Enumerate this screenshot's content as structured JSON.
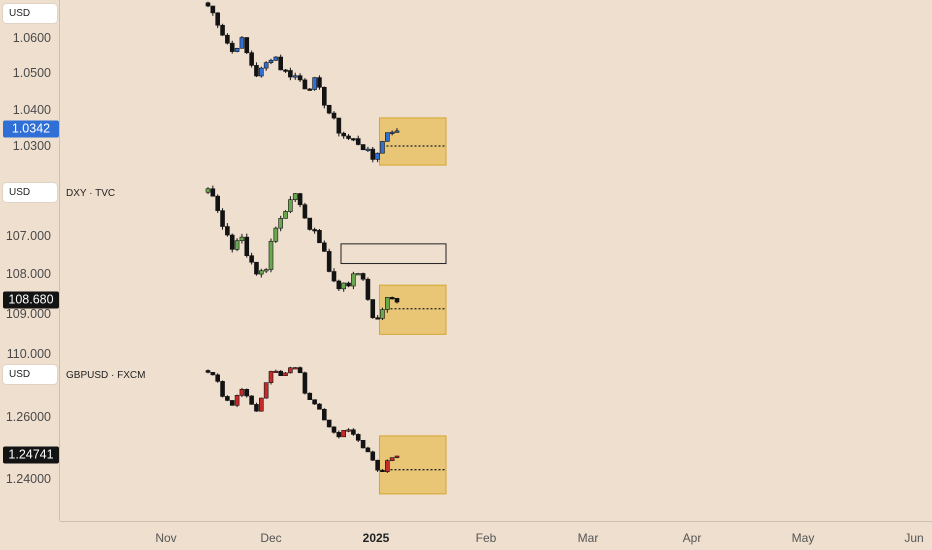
{
  "chart_data": [
    {
      "type": "candlestick",
      "title": "",
      "currency_label": "USD",
      "color_up": "#2f6fd6",
      "color_down": "#131313",
      "y_ticks": [
        "1.0600",
        "1.0500",
        "1.0400",
        "1.0300"
      ],
      "y_tick_values": [
        1.06,
        1.05,
        1.04,
        1.03
      ],
      "current_price": "1.0342",
      "current_price_value": 1.0342,
      "x_range": [
        "2024-11-13",
        "2025-01-06"
      ],
      "close_path": [
        1.0689,
        1.0654,
        1.0602,
        1.056,
        1.06,
        1.054,
        1.0495,
        1.0525,
        1.056,
        1.051,
        1.05,
        1.049,
        1.046,
        1.048,
        1.043,
        1.038,
        1.034,
        1.032,
        1.0315,
        1.0295,
        1.0262,
        1.03,
        1.035,
        1.0342
      ],
      "zones": [
        {
          "type": "demand",
          "from": "2025-01-01",
          "to": "2025-01-20",
          "y_top": 1.0378,
          "y_bottom": 1.0247,
          "color": "#e7c266"
        }
      ],
      "level": {
        "value": 1.03,
        "from": "2025-01-03",
        "to": "2025-01-20",
        "style": "dotted"
      }
    },
    {
      "type": "candlestick",
      "title": "DXY · TVC",
      "currency_label": "USD",
      "axis_inverted": true,
      "color_up": "#6aa84f",
      "color_down": "#131313",
      "y_ticks": [
        "107.000",
        "108.000",
        "109.000",
        "110.000"
      ],
      "y_tick_values": [
        107.0,
        108.0,
        109.0,
        110.0
      ],
      "current_price": "108.680",
      "current_price_value": 108.68,
      "x_range": [
        "2024-11-13",
        "2025-01-06"
      ],
      "close_path": [
        105.8,
        106.3,
        106.9,
        107.4,
        107.0,
        107.6,
        108.1,
        107.9,
        106.9,
        106.6,
        106.1,
        106.0,
        106.7,
        106.9,
        107.2,
        108.1,
        108.4,
        108.2,
        108.0,
        108.2,
        109.2,
        109.0,
        108.5,
        108.68
      ],
      "zones": [
        {
          "type": "supply",
          "from": "2024-12-21",
          "to": "2025-01-20",
          "y_top": 107.2,
          "y_bottom": 107.7,
          "color": "none"
        },
        {
          "type": "demand",
          "from": "2025-01-01",
          "to": "2025-01-20",
          "y_top": 108.25,
          "y_bottom": 109.5,
          "color": "#e7c266"
        }
      ],
      "level": {
        "value": 108.85,
        "from": "2025-01-03",
        "to": "2025-01-20",
        "style": "dotted"
      }
    },
    {
      "type": "candlestick",
      "title": "GBPUSD · FXCM",
      "currency_label": "USD",
      "color_up": "#c62a2a",
      "color_down": "#131313",
      "y_ticks": [
        "1.26000",
        "1.24000"
      ],
      "y_tick_values": [
        1.26,
        1.24
      ],
      "current_price": "1.24741",
      "current_price_value": 1.24741,
      "x_range": [
        "2024-11-13",
        "2025-01-06"
      ],
      "close_path": [
        1.275,
        1.272,
        1.266,
        1.264,
        1.27,
        1.265,
        1.262,
        1.27,
        1.276,
        1.272,
        1.276,
        1.277,
        1.266,
        1.264,
        1.26,
        1.256,
        1.254,
        1.256,
        1.253,
        1.25,
        1.247,
        1.24,
        1.247,
        1.24741
      ],
      "zones": [
        {
          "type": "demand",
          "from": "2025-01-01",
          "to": "2025-01-20",
          "y_top": 1.2539,
          "y_bottom": 1.2352,
          "color": "#e7c266"
        }
      ],
      "level": {
        "value": 1.243,
        "from": "2025-01-03",
        "to": "2025-01-20",
        "style": "dotted"
      }
    }
  ],
  "time_axis": {
    "labels": [
      "Nov",
      "Dec",
      "2025",
      "Feb",
      "Mar",
      "Apr",
      "May",
      "Jun"
    ],
    "bold_label": "2025"
  }
}
